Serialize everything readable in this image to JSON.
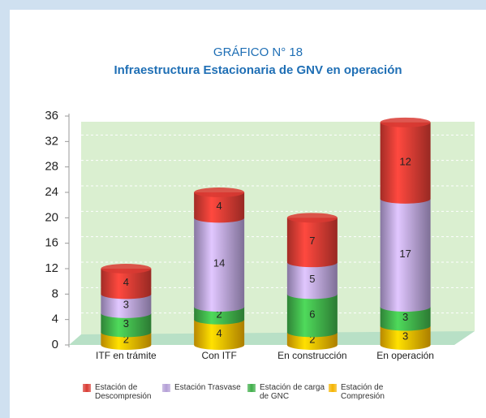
{
  "chart_data": {
    "type": "stacked-bar",
    "title": "GRÁFICO N° 18",
    "subtitle": "Infraestructura Estacionaria de GNV en operación",
    "categories": [
      "ITF en trámite",
      "Con ITF",
      "En construcción",
      "En operación"
    ],
    "series": [
      {
        "name": "Estación de Descompresión",
        "color": "#d93a32",
        "values": [
          4,
          4,
          7,
          12
        ]
      },
      {
        "name": "Estación Trasvase",
        "color": "#b49fd6",
        "values": [
          3,
          14,
          5,
          17
        ]
      },
      {
        "name": "Estación de carga de GNC",
        "color": "#3fae49",
        "values": [
          3,
          2,
          6,
          3
        ]
      },
      {
        "name": "Estación de Compresión",
        "color": "#f5b400",
        "values": [
          2,
          4,
          2,
          3
        ]
      }
    ],
    "ylim": [
      0,
      36
    ],
    "yticks": [
      0,
      4,
      8,
      12,
      16,
      20,
      24,
      28,
      32,
      36
    ],
    "grid": true
  }
}
